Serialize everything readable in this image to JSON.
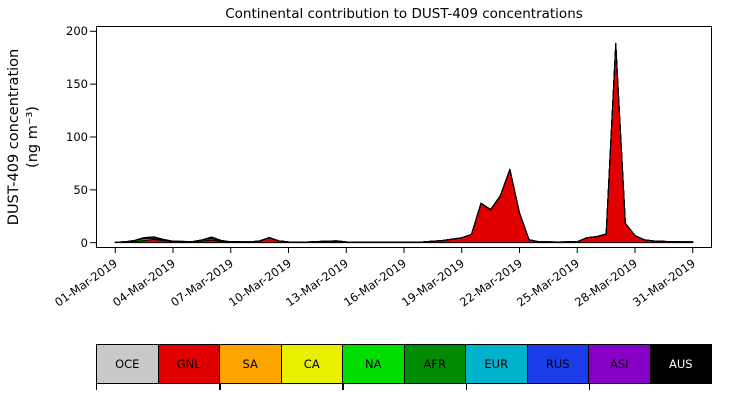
{
  "title": "Continental contribution to DUST-409 concentrations",
  "ylabel": {
    "line1": "DUST-409 concentration",
    "line2": "(ng m⁻³)"
  },
  "chart_data": {
    "type": "area",
    "stacked": true,
    "title": "Continental contribution to DUST-409 concentrations",
    "xlabel": "",
    "ylabel": "DUST-409 concentration (ng m⁻³)",
    "x_unit": "date (March 2019, day of month)",
    "xlim_days": [
      0,
      32
    ],
    "ylim": [
      -5,
      205
    ],
    "yticks": [
      0,
      50,
      100,
      150,
      200
    ],
    "xtick_days": [
      1,
      4,
      7,
      10,
      13,
      16,
      19,
      22,
      25,
      28,
      31
    ],
    "xtick_labels": [
      "01-Mar-2019",
      "04-Mar-2019",
      "07-Mar-2019",
      "10-Mar-2019",
      "13-Mar-2019",
      "16-Mar-2019",
      "19-Mar-2019",
      "22-Mar-2019",
      "25-Mar-2019",
      "28-Mar-2019",
      "31-Mar-2019"
    ],
    "x_days": [
      1,
      1.5,
      2,
      2.5,
      3,
      3.5,
      4,
      5,
      5.5,
      6,
      6.5,
      7,
      8,
      8.5,
      9,
      9.5,
      10,
      11,
      12,
      12.5,
      13,
      14,
      15,
      16,
      17,
      18,
      19,
      19.5,
      20,
      20.5,
      21,
      21.5,
      22,
      22.5,
      23,
      24,
      25,
      25.5,
      26,
      26.5,
      27,
      27.5,
      28,
      28.5,
      29,
      30,
      31
    ],
    "series": [
      {
        "name": "OCE",
        "color": "#c9c9c9",
        "values": [
          0.1,
          0.1,
          0.1,
          0.1,
          0.1,
          0.1,
          0.1,
          0.1,
          0.1,
          0.1,
          0.1,
          0.1,
          0.1,
          0.1,
          0.1,
          0.1,
          0.1,
          0.1,
          0.1,
          0.1,
          0.1,
          0.1,
          0.1,
          0.1,
          0.1,
          0.1,
          0.1,
          0.1,
          0.1,
          0.1,
          0.1,
          0.1,
          0.1,
          0.1,
          0.1,
          0.1,
          0.1,
          0.1,
          0.1,
          0.1,
          0.1,
          0.1,
          0.1,
          0.1,
          0.1,
          0.1,
          0.1
        ]
      },
      {
        "name": "GNL",
        "color": "#e10000",
        "values": [
          0.3,
          0.5,
          1,
          2,
          3,
          2,
          1,
          0.8,
          1.5,
          2.5,
          1.2,
          0.6,
          0.6,
          1.5,
          4.5,
          1.5,
          0.6,
          0.5,
          0.5,
          0.6,
          0.4,
          0.3,
          0.3,
          0.3,
          0.6,
          1.8,
          4.5,
          7.5,
          37,
          31,
          44,
          69,
          28,
          2.5,
          0.8,
          0.5,
          0.8,
          4.5,
          5.5,
          8,
          188,
          18,
          6.5,
          2.5,
          1.5,
          0.8,
          0.6
        ]
      },
      {
        "name": "SA",
        "color": "#ffa500",
        "values": [
          0,
          0,
          0,
          0,
          0,
          0,
          0,
          0,
          0,
          0,
          0,
          0,
          0,
          0,
          0,
          0,
          0,
          0,
          0,
          0,
          0,
          0,
          0,
          0,
          0,
          0,
          0,
          0,
          0,
          0,
          0,
          0,
          0,
          0,
          0,
          0,
          0,
          0,
          0,
          0,
          0,
          0,
          0,
          0,
          0,
          0,
          0
        ]
      },
      {
        "name": "CA",
        "color": "#e8f000",
        "values": [
          0,
          0,
          0,
          0,
          0,
          0,
          0,
          0,
          0,
          0,
          0,
          0,
          0,
          0,
          0,
          0,
          0,
          0,
          0,
          0,
          0,
          0,
          0,
          0,
          0,
          0,
          0,
          0,
          0,
          0,
          0,
          0,
          0,
          0,
          0,
          0,
          0,
          0,
          0,
          0,
          0,
          0,
          0,
          0,
          0,
          0,
          0
        ]
      },
      {
        "name": "NA",
        "color": "#00dd00",
        "values": [
          0.1,
          0.3,
          1,
          2,
          1.3,
          0.5,
          0.2,
          0.2,
          1,
          1.5,
          0.6,
          0.2,
          0.1,
          0.2,
          0.3,
          0.2,
          0.1,
          0.1,
          0.9,
          1.1,
          0.3,
          0.1,
          0.1,
          0.1,
          0.1,
          0.2,
          0.2,
          0.2,
          0.3,
          0.3,
          0.3,
          0.4,
          0.3,
          0.2,
          0.1,
          0.1,
          0.1,
          0.2,
          0.2,
          0.2,
          0.5,
          0.3,
          0.2,
          0.1,
          0.1,
          0.1,
          0.1
        ]
      },
      {
        "name": "AFR",
        "color": "#008c00",
        "values": [
          0,
          0,
          0,
          0,
          0,
          0,
          0,
          0,
          0,
          0.4,
          0,
          0,
          0,
          0,
          0,
          0,
          0,
          0,
          0,
          0,
          0,
          0,
          0,
          0,
          0,
          0,
          0,
          0,
          0,
          0,
          0,
          0,
          0,
          0,
          0,
          0,
          0,
          0,
          0,
          0,
          0,
          0,
          0,
          0,
          0,
          0,
          0
        ]
      },
      {
        "name": "EUR",
        "color": "#00b2cc",
        "values": [
          0,
          0,
          0,
          0,
          0,
          0,
          0,
          0,
          0,
          0,
          0,
          0,
          0,
          0,
          0,
          0,
          0,
          0,
          0,
          0,
          0,
          0,
          0,
          0,
          0,
          0,
          0,
          0,
          0,
          0,
          0,
          0,
          0,
          0,
          0,
          0,
          0,
          0,
          0,
          0,
          0,
          0,
          0,
          0,
          0,
          0,
          0
        ]
      },
      {
        "name": "RUS",
        "color": "#1a3de8",
        "values": [
          0,
          0,
          0,
          0.8,
          1.2,
          0.6,
          0.2,
          0,
          0,
          0,
          0,
          0,
          0,
          0,
          0,
          0,
          0,
          0,
          0,
          0,
          0,
          0,
          0,
          0,
          0,
          0,
          0,
          0,
          0,
          0,
          0,
          0,
          0,
          0,
          0,
          0,
          0,
          0,
          0,
          0,
          0,
          0,
          0,
          0,
          0,
          0,
          0
        ]
      },
      {
        "name": "ASI",
        "color": "#8800c8",
        "values": [
          0,
          0,
          0,
          0,
          0,
          0,
          0,
          0,
          0,
          1,
          0.4,
          0,
          0,
          0,
          0,
          0,
          0,
          0,
          0,
          0,
          0,
          0,
          0,
          0,
          0,
          0,
          0,
          0,
          0,
          0,
          0,
          0,
          0,
          0,
          0,
          0,
          0,
          0,
          0,
          0,
          0,
          0,
          0,
          0,
          0,
          0,
          0
        ]
      },
      {
        "name": "AUS",
        "color": "#000000",
        "values": [
          0,
          0,
          0,
          0,
          0,
          0,
          0,
          0,
          0,
          0,
          0,
          0,
          0,
          0,
          0,
          0,
          0,
          0,
          0,
          0,
          0,
          0,
          0,
          0,
          0,
          0,
          0,
          0,
          0,
          0,
          0,
          0,
          0,
          0,
          0,
          0,
          0,
          0,
          0,
          0,
          0,
          0,
          0,
          0,
          0,
          0,
          0
        ]
      }
    ]
  },
  "legend": {
    "entries": [
      {
        "label": "OCE",
        "color": "#c9c9c9",
        "text": "#000000"
      },
      {
        "label": "GNL",
        "color": "#e10000",
        "text": "#000000"
      },
      {
        "label": "SA",
        "color": "#ffa500",
        "text": "#000000"
      },
      {
        "label": "CA",
        "color": "#e8f000",
        "text": "#000000"
      },
      {
        "label": "NA",
        "color": "#00dd00",
        "text": "#000000"
      },
      {
        "label": "AFR",
        "color": "#008c00",
        "text": "#000000"
      },
      {
        "label": "EUR",
        "color": "#00b2cc",
        "text": "#000000"
      },
      {
        "label": "RUS",
        "color": "#1a3de8",
        "text": "#000000"
      },
      {
        "label": "ASI",
        "color": "#8800c8",
        "text": "#000000"
      },
      {
        "label": "AUS",
        "color": "#000000",
        "text": "#ffffff"
      }
    ]
  }
}
